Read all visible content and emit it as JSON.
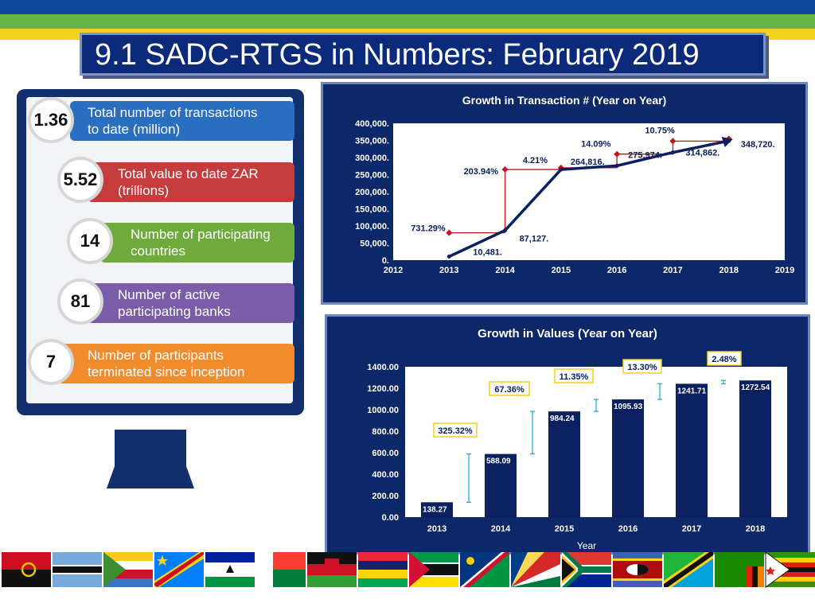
{
  "slide": {
    "title": "9.1 SADC-RTGS in Numbers: February 2019"
  },
  "stats": [
    {
      "value": "1.36",
      "line1": "Total number of transactions",
      "line2": "to date (million)",
      "color": "#2a6ec0"
    },
    {
      "value": "5.52",
      "line1": "Total value to date ZAR",
      "line2": "(trillions)",
      "color": "#c43c3c"
    },
    {
      "value": "14",
      "line1": "Number of participating",
      "line2": "countries",
      "color": "#6faa3c"
    },
    {
      "value": "81",
      "line1": "Number of active",
      "line2": "participating banks",
      "color": "#7a5ca8"
    },
    {
      "value": "7",
      "line1": "Number of participants",
      "line2": "terminated since inception",
      "color": "#f08c2c"
    }
  ],
  "chart_data": [
    {
      "type": "line",
      "title": "Growth in Transaction # (Year on Year)",
      "x_ticks": [
        "2012",
        "2013",
        "2014",
        "2015",
        "2016",
        "2017",
        "2018",
        "2019"
      ],
      "y_ticks": [
        "0.",
        "50,000.",
        "100,000.",
        "150,000.",
        "200,000.",
        "250,000.",
        "300,000.",
        "350,000.",
        "400,000."
      ],
      "ylim": [
        0,
        400000
      ],
      "xlim": [
        2012,
        2019
      ],
      "series": [
        {
          "x": [
            2013,
            2014,
            2015,
            2016,
            2017,
            2018
          ],
          "values": [
            10481,
            87127,
            264816,
            275974,
            314862,
            348720
          ],
          "labels": [
            "10,481.",
            "87,127.",
            "264,816.",
            "275,974.",
            "314,862.",
            "348,720."
          ],
          "color": "#0b2060"
        }
      ],
      "growth": {
        "x": [
          2013,
          2014,
          2015,
          2016,
          2017,
          2018
        ],
        "values": [
          80000,
          265000,
          270000,
          310000,
          348000,
          355000
        ],
        "labels": [
          "731.29%",
          "203.94%",
          "4.21%",
          "14.09%",
          "10.75%",
          ""
        ],
        "color": "#c0161b"
      },
      "grid": false
    },
    {
      "type": "bar",
      "title": "Growth in Values (Year on Year)",
      "xlabel": "Year",
      "categories": [
        "2013",
        "2014",
        "2015",
        "2016",
        "2017",
        "2018"
      ],
      "values": [
        138.27,
        588.09,
        984.24,
        1095.93,
        1241.71,
        1272.54
      ],
      "value_labels": [
        "138.27",
        "588.09",
        "984.24",
        "1095.93",
        "1241.71",
        "1272.54"
      ],
      "y_ticks": [
        "0.00",
        "200.00",
        "400.00",
        "600.00",
        "800.00",
        "1000.00",
        "1200.00",
        "1400.00"
      ],
      "ylim": [
        0,
        1400
      ],
      "growth_labels": [
        "325.32%",
        "67.36%",
        "11.35%",
        "13.30%",
        "2.48%"
      ],
      "bar_color": "#0b2060",
      "grid": false
    }
  ],
  "flags": [
    "Angola",
    "Botswana",
    "Comoros",
    "DR Congo",
    "Lesotho",
    "Madagascar",
    "Malawi",
    "Mauritius",
    "Mozambique",
    "Namibia",
    "Seychelles",
    "South Africa",
    "Eswatini",
    "Tanzania",
    "Zambia",
    "Zimbabwe"
  ]
}
